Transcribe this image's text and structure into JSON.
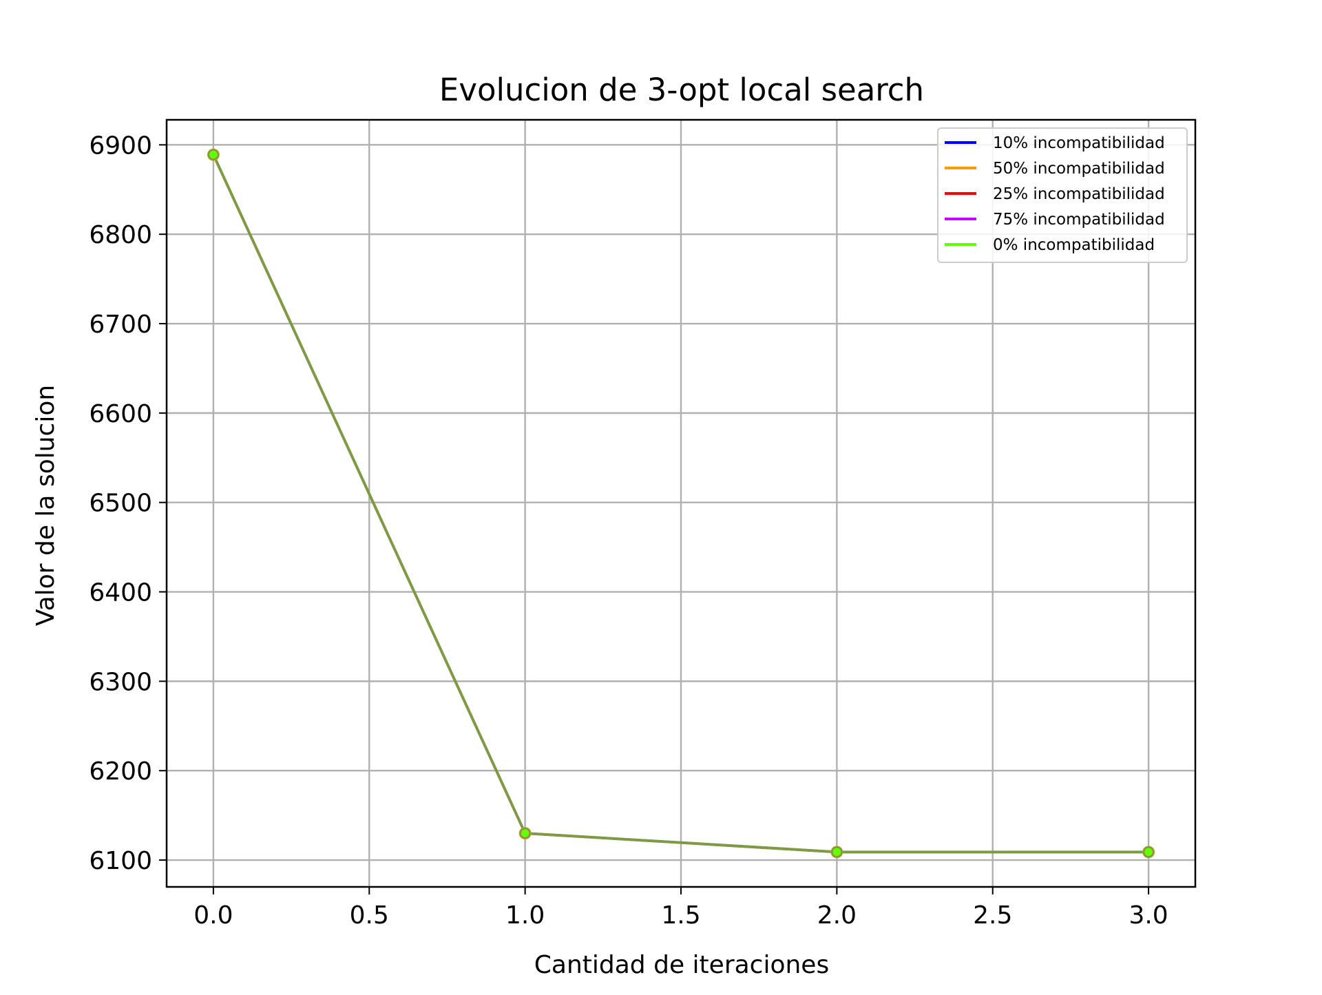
{
  "chart_data": {
    "type": "line",
    "title": "Evolucion de 3-opt local search",
    "xlabel": "Cantidad de iteraciones",
    "ylabel": "Valor de la solucion",
    "xlim": [
      -0.15,
      3.15
    ],
    "ylim": [
      6070,
      6928
    ],
    "xticks": [
      0.0,
      0.5,
      1.0,
      1.5,
      2.0,
      2.5,
      3.0
    ],
    "xtick_labels": [
      "0.0",
      "0.5",
      "1.0",
      "1.5",
      "2.0",
      "2.5",
      "3.0"
    ],
    "yticks": [
      6100,
      6200,
      6300,
      6400,
      6500,
      6600,
      6700,
      6800,
      6900
    ],
    "ytick_labels": [
      "6100",
      "6200",
      "6300",
      "6400",
      "6500",
      "6600",
      "6700",
      "6800",
      "6900"
    ],
    "grid": true,
    "legend_position": "top-right",
    "x": [
      0,
      1,
      2,
      3
    ],
    "series": [
      {
        "name": "10% incompatibilidad",
        "color": "#0000ff",
        "values": [
          6889,
          6130,
          6109,
          6109
        ]
      },
      {
        "name": "50% incompatibilidad",
        "color": "#ff9900",
        "values": [
          6889,
          6130,
          6109,
          6109
        ]
      },
      {
        "name": "25% incompatibilidad",
        "color": "#ff0000",
        "values": [
          6889,
          6130,
          6109,
          6109
        ]
      },
      {
        "name": "75% incompatibilidad",
        "color": "#cc00ff",
        "values": [
          6889,
          6130,
          6109,
          6109
        ]
      },
      {
        "name": "0% incompatibilidad",
        "color": "#66ff00",
        "values": [
          6889,
          6130,
          6109,
          6109
        ]
      }
    ],
    "blended_line_color": "#7f9a45"
  }
}
